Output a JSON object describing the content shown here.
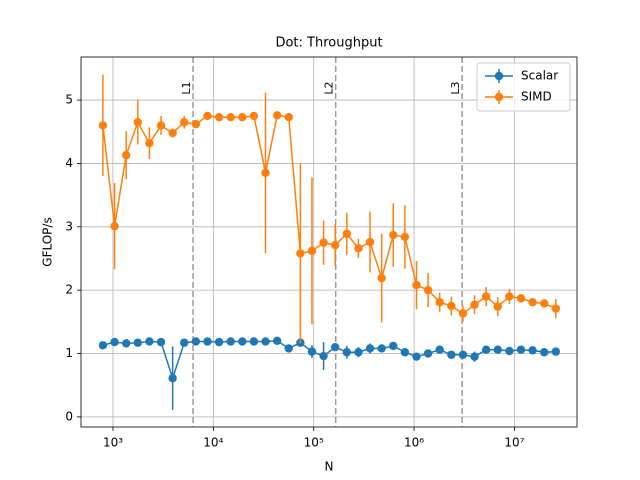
{
  "chart_data": {
    "type": "errorbar-line",
    "title": "Dot: Throughput",
    "x_label": "N",
    "y_label": "GFLOP/s",
    "x_scale": "log",
    "grid": true,
    "legend": "upper right",
    "xlim": [
      480,
      42000000
    ],
    "ylim": [
      -0.16,
      5.68
    ],
    "xticks": [
      {
        "value": 1000,
        "label": "10³"
      },
      {
        "value": 10000,
        "label": "10⁴"
      },
      {
        "value": 100000,
        "label": "10⁵"
      },
      {
        "value": 1000000,
        "label": "10⁶"
      },
      {
        "value": 10000000,
        "label": "10⁷"
      }
    ],
    "yticks": [
      0,
      1,
      2,
      3,
      4,
      5
    ],
    "x": [
      794,
      1037,
      1353,
      1766,
      2306,
      3009,
      3928,
      5127,
      6692,
      8736,
      11402,
      14883,
      19427,
      25359,
      33100,
      43207,
      56400,
      73620,
      96070,
      125400,
      163700,
      213600,
      278900,
      364000,
      475200,
      620200,
      809600,
      1056800,
      1379000,
      1800000,
      2350000,
      3067000,
      4004000,
      5226000,
      6821000,
      8903000,
      11620000,
      15170000,
      19800000,
      25840000
    ],
    "series": [
      {
        "name": "Scalar",
        "color": "#1f77b4",
        "values": [
          1.13,
          1.18,
          1.16,
          1.17,
          1.19,
          1.18,
          0.61,
          1.17,
          1.19,
          1.19,
          1.18,
          1.19,
          1.19,
          1.19,
          1.19,
          1.2,
          1.08,
          1.17,
          1.03,
          0.96,
          1.1,
          1.02,
          1.02,
          1.08,
          1.08,
          1.12,
          1.02,
          0.95,
          1.0,
          1.06,
          0.98,
          0.98,
          0.95,
          1.06,
          1.06,
          1.04,
          1.06,
          1.05,
          1.02,
          1.03
        ],
        "errors": [
          0.02,
          0.02,
          0.02,
          0.02,
          0.02,
          0.02,
          0.5,
          0.02,
          0.02,
          0.02,
          0.02,
          0.02,
          0.02,
          0.02,
          0.02,
          0.02,
          0.06,
          0.05,
          0.1,
          0.22,
          0.05,
          0.1,
          0.08,
          0.08,
          0.06,
          0.05,
          0.03,
          0.03,
          0.03,
          0.03,
          0.03,
          0.03,
          0.08,
          0.03,
          0.03,
          0.03,
          0.03,
          0.03,
          0.03,
          0.03
        ]
      },
      {
        "name": "SIMD",
        "color": "#ff7f0e",
        "values": [
          4.6,
          3.01,
          4.13,
          4.65,
          4.32,
          4.6,
          4.48,
          4.65,
          4.62,
          4.75,
          4.73,
          4.73,
          4.73,
          4.75,
          3.85,
          4.76,
          4.73,
          2.58,
          2.62,
          2.75,
          2.71,
          2.89,
          2.66,
          2.76,
          2.19,
          2.87,
          2.84,
          2.08,
          2.0,
          1.81,
          1.75,
          1.63,
          1.77,
          1.9,
          1.74,
          1.9,
          1.87,
          1.81,
          1.79,
          1.71
        ],
        "errors": [
          0.8,
          0.68,
          0.38,
          0.35,
          0.25,
          0.15,
          0.07,
          0.1,
          0.05,
          0.05,
          0.03,
          0.03,
          0.03,
          0.03,
          1.27,
          0.05,
          0.05,
          1.42,
          1.16,
          0.35,
          0.33,
          0.33,
          0.15,
          0.48,
          0.7,
          0.5,
          0.5,
          0.38,
          0.27,
          0.15,
          0.15,
          0.13,
          0.15,
          0.15,
          0.15,
          0.12,
          0.05,
          0.05,
          0.05,
          0.15
        ]
      }
    ],
    "vlines": [
      {
        "x": 6280,
        "label": "L1"
      },
      {
        "x": 165600,
        "label": "L2"
      },
      {
        "x": 3010000,
        "label": "L3"
      }
    ]
  }
}
